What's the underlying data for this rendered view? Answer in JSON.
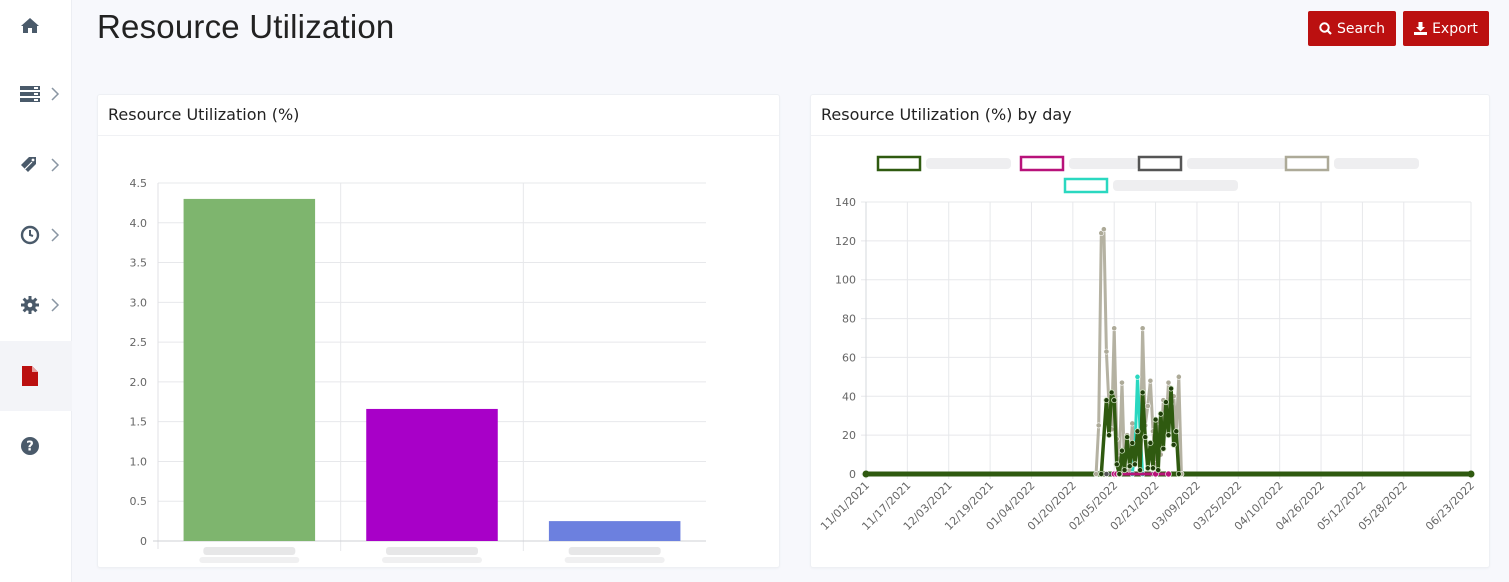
{
  "header": {
    "title": "Resource Utilization",
    "search_label": "Search",
    "export_label": "Export"
  },
  "sidebar": {
    "items": [
      {
        "icon": "home-icon",
        "has_submenu": false,
        "active": false
      },
      {
        "icon": "server-icon",
        "has_submenu": true,
        "active": false
      },
      {
        "icon": "tag-icon",
        "has_submenu": true,
        "active": false
      },
      {
        "icon": "clock-icon",
        "has_submenu": true,
        "active": false
      },
      {
        "icon": "gear-icon",
        "has_submenu": true,
        "active": false
      },
      {
        "icon": "file-icon",
        "has_submenu": false,
        "active": true
      },
      {
        "icon": "help-icon",
        "has_submenu": false,
        "active": false
      }
    ]
  },
  "colors": {
    "accent": "#bb1010",
    "sidebar_icon": "#4a5a6a"
  },
  "chart_data": [
    {
      "type": "bar",
      "title": "Resource Utilization (%)",
      "categories": [
        "",
        "",
        ""
      ],
      "values": [
        4.3,
        1.66,
        0.25
      ],
      "colors": [
        "#7eb56e",
        "#a800c8",
        "#6c80df"
      ],
      "ylim": [
        0,
        4.5
      ],
      "yticks": [
        "0",
        "0.5",
        "1.0",
        "1.5",
        "2.0",
        "2.5",
        "3.0",
        "3.5",
        "4.0",
        "4.5"
      ],
      "grid": true
    },
    {
      "type": "line",
      "title": "Resource Utilization (%) by day",
      "legend_placement": "top",
      "ylim": [
        0,
        140
      ],
      "yticks": [
        "0",
        "20",
        "40",
        "60",
        "80",
        "100",
        "120",
        "140"
      ],
      "xlim": [
        "11/01/2021",
        "06/23/2022"
      ],
      "xticks": [
        "11/01/2021",
        "11/17/2021",
        "12/03/2021",
        "12/19/2021",
        "01/04/2022",
        "01/20/2022",
        "02/05/2022",
        "02/21/2022",
        "03/09/2022",
        "03/25/2022",
        "04/10/2022",
        "04/26/2022",
        "05/12/2022",
        "05/28/2022",
        "06/23/2022"
      ],
      "grid": true,
      "series": [
        {
          "color": "#2f5a10",
          "points": [
            [
              "01/31/2022",
              0
            ],
            [
              "02/02/2022",
              38
            ],
            [
              "02/03/2022",
              20
            ],
            [
              "02/04/2022",
              42
            ],
            [
              "02/05/2022",
              38
            ],
            [
              "02/06/2022",
              5
            ],
            [
              "02/07/2022",
              0
            ],
            [
              "02/08/2022",
              12
            ],
            [
              "02/09/2022",
              2
            ],
            [
              "02/10/2022",
              19
            ],
            [
              "02/11/2022",
              4
            ],
            [
              "02/12/2022",
              16
            ],
            [
              "02/13/2022",
              5
            ],
            [
              "02/14/2022",
              22
            ],
            [
              "02/15/2022",
              2
            ],
            [
              "02/16/2022",
              42
            ],
            [
              "02/17/2022",
              19
            ],
            [
              "02/18/2022",
              3
            ],
            [
              "02/19/2022",
              16
            ],
            [
              "02/20/2022",
              3
            ],
            [
              "02/21/2022",
              28
            ],
            [
              "02/22/2022",
              2
            ],
            [
              "02/23/2022",
              31
            ],
            [
              "02/24/2022",
              13
            ],
            [
              "02/25/2022",
              37
            ],
            [
              "02/26/2022",
              20
            ],
            [
              "02/27/2022",
              44
            ],
            [
              "02/28/2022",
              15
            ],
            [
              "03/01/2022",
              22
            ],
            [
              "03/02/2022",
              0
            ]
          ]
        },
        {
          "color": "#b8127a",
          "points": [
            [
              "02/05/2022",
              0
            ],
            [
              "02/06/2022",
              0
            ],
            [
              "02/07/2022",
              0
            ],
            [
              "02/21/2022",
              0
            ],
            [
              "02/26/2022",
              0
            ]
          ]
        },
        {
          "color": "#555555",
          "points": [
            [
              "02/02/2022",
              0
            ],
            [
              "02/20/2022",
              0
            ]
          ]
        },
        {
          "color": "#adaa98",
          "points": [
            [
              "01/29/2022",
              0
            ],
            [
              "01/30/2022",
              25
            ],
            [
              "01/31/2022",
              124
            ],
            [
              "02/01/2022",
              126
            ],
            [
              "02/02/2022",
              63
            ],
            [
              "02/03/2022",
              35
            ],
            [
              "02/04/2022",
              23
            ],
            [
              "02/05/2022",
              75
            ],
            [
              "02/06/2022",
              18
            ],
            [
              "02/07/2022",
              8
            ],
            [
              "02/08/2022",
              47
            ],
            [
              "02/09/2022",
              3
            ],
            [
              "02/10/2022",
              20
            ],
            [
              "02/11/2022",
              2
            ],
            [
              "02/12/2022",
              26
            ],
            [
              "02/13/2022",
              5
            ],
            [
              "02/14/2022",
              22
            ],
            [
              "02/15/2022",
              4
            ],
            [
              "02/16/2022",
              75
            ],
            [
              "02/17/2022",
              25
            ],
            [
              "02/18/2022",
              35
            ],
            [
              "02/19/2022",
              48
            ],
            [
              "02/20/2022",
              22
            ],
            [
              "02/21/2022",
              5
            ],
            [
              "02/22/2022",
              27
            ],
            [
              "02/23/2022",
              10
            ],
            [
              "02/24/2022",
              38
            ],
            [
              "02/25/2022",
              25
            ],
            [
              "02/26/2022",
              47
            ],
            [
              "02/27/2022",
              36
            ],
            [
              "02/28/2022",
              40
            ],
            [
              "03/01/2022",
              22
            ],
            [
              "03/02/2022",
              50
            ],
            [
              "03/03/2022",
              0
            ]
          ]
        },
        {
          "color": "#2ad8c0",
          "points": [
            [
              "02/12/2022",
              0
            ],
            [
              "02/13/2022",
              12
            ],
            [
              "02/14/2022",
              50
            ],
            [
              "02/15/2022",
              22
            ],
            [
              "02/16/2022",
              0
            ]
          ]
        }
      ]
    }
  ]
}
